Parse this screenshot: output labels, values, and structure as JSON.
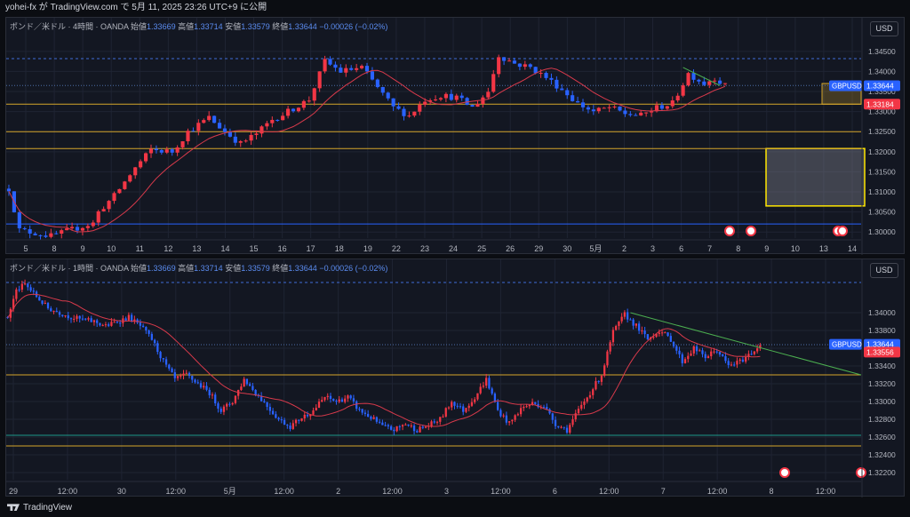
{
  "header": {
    "title": "yohei-fx が TradingView.com で 5月 11, 2025 23:26 UTC+9 に公開"
  },
  "footer": {
    "brand": "TradingView"
  },
  "colors": {
    "bull": "#f23645",
    "bear": "#2962ff",
    "ma": "#d83a4b",
    "gold": "#d4a52b",
    "yellow": "#ffe600",
    "teal": "#1e9a8a",
    "trend": "#4caf50",
    "grid": "#1f2433",
    "bg": "#131722"
  },
  "chart_data": [
    {
      "type": "candlestick",
      "legend": {
        "symbol": "ポンド／米ドル · 4時間 · OANDA",
        "open_label": "始値",
        "open": "1.33669",
        "high_label": "高値",
        "high": "1.33714",
        "low_label": "安値",
        "low": "1.33579",
        "close_label": "終値",
        "close": "1.33644",
        "change": "−0.00026 (−0.02%)"
      },
      "currency": "USD",
      "ylim": [
        1.2985,
        1.3485
      ],
      "yticks": [
        "1.34500",
        "1.34000",
        "1.33500",
        "1.33000",
        "1.32500",
        "1.32000",
        "1.31500",
        "1.31000",
        "1.30500",
        "1.30000"
      ],
      "xticks": [
        "5",
        "8",
        "9",
        "10",
        "11",
        "12",
        "13",
        "14",
        "15",
        "16",
        "17",
        "18",
        "19",
        "22",
        "23",
        "24",
        "25",
        "26",
        "29",
        "30",
        "5月",
        "2",
        "3",
        "6",
        "7",
        "8",
        "9",
        "10",
        "13",
        "14"
      ],
      "price_tags": [
        {
          "label": "GBPUSD",
          "value": "1.33644"
        },
        {
          "value": "1.33184"
        }
      ],
      "hlines": [
        1.3432,
        1.3365,
        1.33184,
        1.325,
        1.3208,
        1.302
      ],
      "zones": [
        {
          "y0": 1.33184,
          "y1": 1.337
        },
        {
          "y0": 1.3065,
          "y1": 1.3208
        }
      ],
      "anchors": [
        [
          0,
          1.3108
        ],
        [
          2,
          1.3005
        ],
        [
          8,
          1.299
        ],
        [
          16,
          1.3022
        ],
        [
          17,
          1.305
        ],
        [
          20,
          1.309
        ],
        [
          24,
          1.316
        ],
        [
          27,
          1.3205
        ],
        [
          31,
          1.32
        ],
        [
          34,
          1.325
        ],
        [
          38,
          1.3285
        ],
        [
          41,
          1.325
        ],
        [
          44,
          1.322
        ],
        [
          47,
          1.3245
        ],
        [
          50,
          1.328
        ],
        [
          53,
          1.33
        ],
        [
          57,
          1.333
        ],
        [
          60,
          1.3425
        ],
        [
          63,
          1.34
        ],
        [
          67,
          1.341
        ],
        [
          70,
          1.336
        ],
        [
          73,
          1.331
        ],
        [
          76,
          1.329
        ],
        [
          79,
          1.333
        ],
        [
          82,
          1.334
        ],
        [
          85,
          1.3335
        ],
        [
          88,
          1.331
        ],
        [
          91,
          1.335
        ],
        [
          93,
          1.344
        ],
        [
          96,
          1.342
        ],
        [
          99,
          1.341
        ],
        [
          102,
          1.3385
        ],
        [
          105,
          1.3355
        ],
        [
          108,
          1.332
        ],
        [
          111,
          1.33
        ],
        [
          114,
          1.331
        ],
        [
          117,
          1.3295
        ],
        [
          120,
          1.329
        ],
        [
          123,
          1.331
        ],
        [
          126,
          1.332
        ],
        [
          129,
          1.3395
        ],
        [
          132,
          1.337
        ],
        [
          134,
          1.3385
        ],
        [
          136,
          1.3364
        ]
      ]
    },
    {
      "type": "candlestick",
      "legend": {
        "symbol": "ポンド／米ドル · 1時間 · OANDA",
        "open_label": "始値",
        "open": "1.33669",
        "high_label": "高値",
        "high": "1.33714",
        "low_label": "安値",
        "low": "1.33579",
        "close_label": "終値",
        "close": "1.33644",
        "change": "−0.00026 (−0.02%)"
      },
      "currency": "USD",
      "ylim": [
        1.3212,
        1.344
      ],
      "yticks": [
        "1.34000",
        "1.33800",
        "1.33600",
        "1.33400",
        "1.33200",
        "1.33000",
        "1.32800",
        "1.32600",
        "1.32400",
        "1.32200"
      ],
      "xticks": [
        "29",
        "12:00",
        "30",
        "12:00",
        "5月",
        "12:00",
        "2",
        "12:00",
        "3",
        "12:00",
        "6",
        "12:00",
        "7",
        "12:00",
        "8",
        "12:00"
      ],
      "price_tags": [
        {
          "label": "GBPUSD",
          "value": "1.33644"
        },
        {
          "value": "1.33556"
        }
      ],
      "hlines": [
        1.3434,
        1.3364,
        1.333,
        1.3262,
        1.325
      ],
      "anchors": [
        [
          0,
          1.3395
        ],
        [
          3,
          1.3425
        ],
        [
          6,
          1.3432
        ],
        [
          10,
          1.3418
        ],
        [
          14,
          1.3405
        ],
        [
          18,
          1.34
        ],
        [
          22,
          1.3395
        ],
        [
          26,
          1.3392
        ],
        [
          30,
          1.339
        ],
        [
          34,
          1.3385
        ],
        [
          38,
          1.339
        ],
        [
          42,
          1.3395
        ],
        [
          46,
          1.3385
        ],
        [
          50,
          1.337
        ],
        [
          54,
          1.3345
        ],
        [
          58,
          1.3325
        ],
        [
          62,
          1.333
        ],
        [
          66,
          1.332
        ],
        [
          70,
          1.331
        ],
        [
          74,
          1.329
        ],
        [
          78,
          1.33
        ],
        [
          82,
          1.3325
        ],
        [
          86,
          1.331
        ],
        [
          90,
          1.3295
        ],
        [
          94,
          1.328
        ],
        [
          98,
          1.3272
        ],
        [
          102,
          1.3282
        ],
        [
          106,
          1.329
        ],
        [
          110,
          1.3305
        ],
        [
          114,
          1.33
        ],
        [
          118,
          1.3305
        ],
        [
          122,
          1.329
        ],
        [
          126,
          1.3282
        ],
        [
          130,
          1.3272
        ],
        [
          134,
          1.3268
        ],
        [
          138,
          1.3275
        ],
        [
          142,
          1.3268
        ],
        [
          146,
          1.3273
        ],
        [
          150,
          1.328
        ],
        [
          154,
          1.33
        ],
        [
          158,
          1.329
        ],
        [
          162,
          1.3305
        ],
        [
          166,
          1.3325
        ],
        [
          170,
          1.329
        ],
        [
          174,
          1.3275
        ],
        [
          178,
          1.3292
        ],
        [
          182,
          1.3298
        ],
        [
          186,
          1.3295
        ],
        [
          190,
          1.3275
        ],
        [
          194,
          1.3268
        ],
        [
          198,
          1.329
        ],
        [
          202,
          1.331
        ],
        [
          206,
          1.333
        ],
        [
          210,
          1.3378
        ],
        [
          214,
          1.3398
        ],
        [
          218,
          1.3385
        ],
        [
          222,
          1.337
        ],
        [
          226,
          1.338
        ],
        [
          230,
          1.337
        ],
        [
          234,
          1.3345
        ],
        [
          238,
          1.336
        ],
        [
          242,
          1.335
        ],
        [
          246,
          1.3358
        ],
        [
          250,
          1.334
        ],
        [
          254,
          1.3345
        ],
        [
          258,
          1.3355
        ],
        [
          261,
          1.3364
        ]
      ]
    }
  ]
}
